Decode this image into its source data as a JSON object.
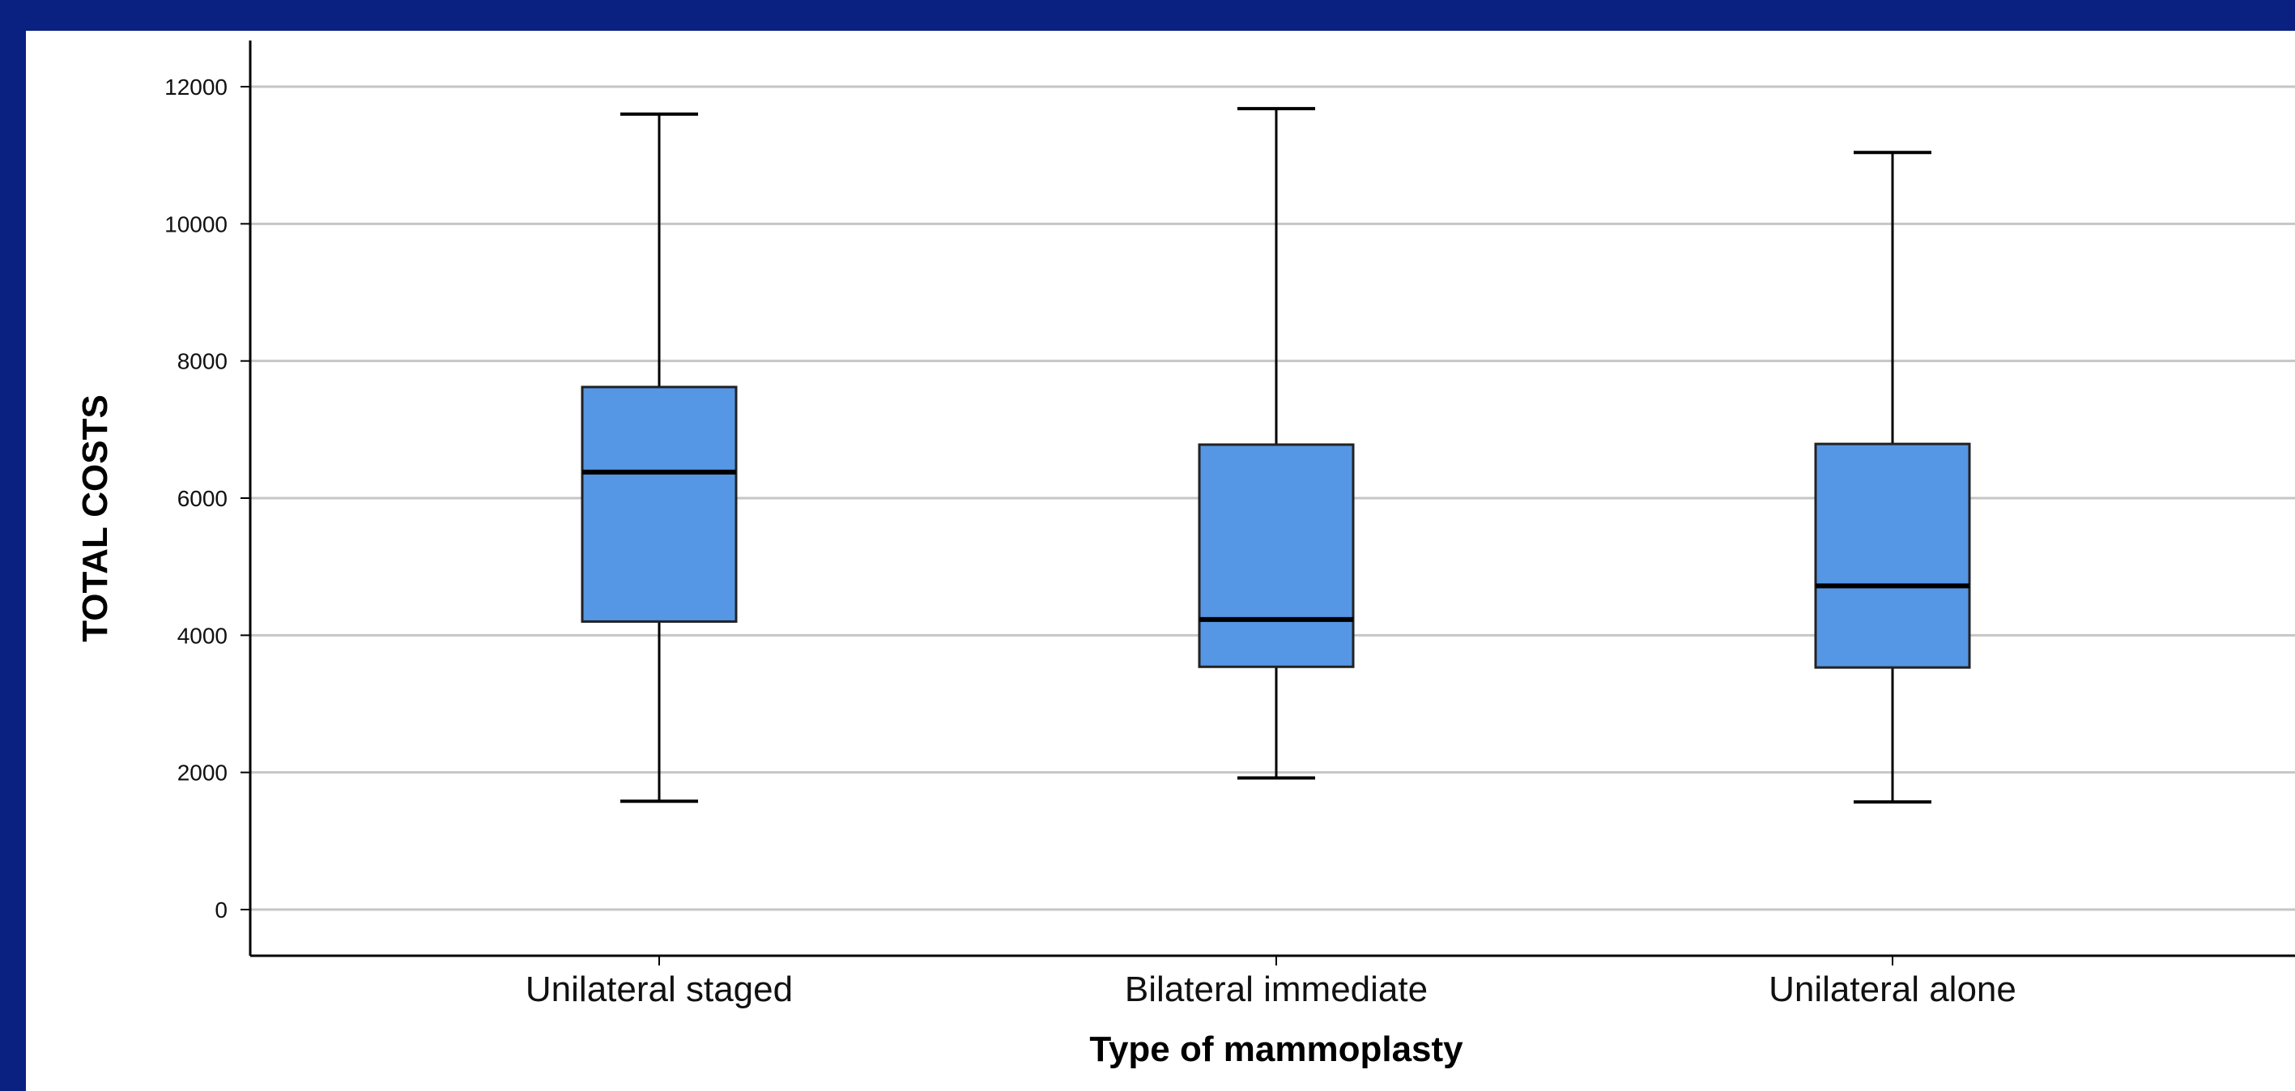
{
  "chart_data": {
    "type": "box",
    "xlabel": "Type of mammoplasty",
    "ylabel": "TOTAL COSTS",
    "ylim": [
      -650,
      12650
    ],
    "yticks": [
      0,
      2000,
      4000,
      6000,
      8000,
      10000,
      12000
    ],
    "grid": true,
    "categories": [
      "Unilateral staged",
      "Bilateral immediate",
      "Unilateral alone"
    ],
    "boxes": [
      {
        "category": "Unilateral staged",
        "min": 1580,
        "q1": 4200,
        "median": 6380,
        "q3": 7620,
        "max": 11600
      },
      {
        "category": "Bilateral immediate",
        "min": 1920,
        "q1": 3540,
        "median": 4230,
        "q3": 6780,
        "max": 11680
      },
      {
        "category": "Unilateral alone",
        "min": 1570,
        "q1": 3530,
        "median": 4720,
        "q3": 6790,
        "max": 11040
      }
    ],
    "colors": {
      "box_fill": "#5597e4",
      "box_stroke": "#222222",
      "grid": "#c6c6c6",
      "frame": "#0b2181"
    }
  }
}
